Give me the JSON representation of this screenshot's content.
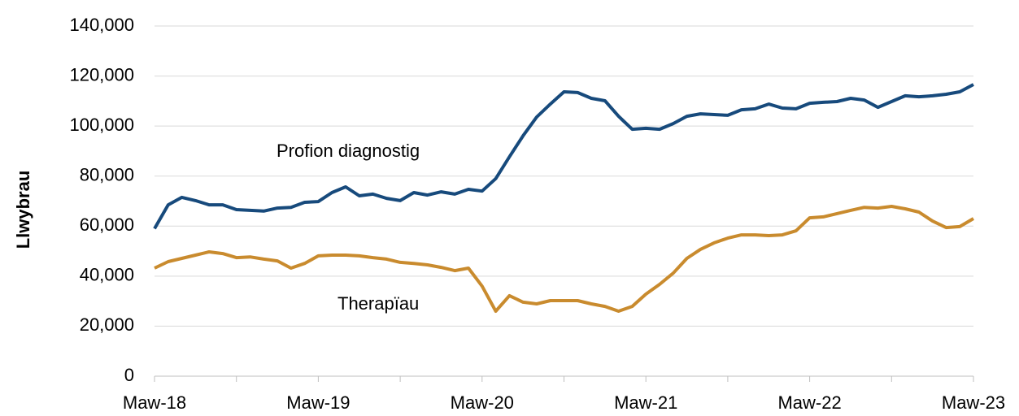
{
  "chart_data": {
    "type": "line",
    "y_label": "Llwybrau",
    "categories": [
      "Maw-18",
      null,
      null,
      null,
      null,
      null,
      null,
      null,
      null,
      null,
      null,
      null,
      "Maw-19",
      null,
      null,
      null,
      null,
      null,
      null,
      null,
      null,
      null,
      null,
      null,
      "Maw-20",
      null,
      null,
      null,
      null,
      null,
      null,
      null,
      null,
      null,
      null,
      null,
      "Maw-21",
      null,
      null,
      null,
      null,
      null,
      null,
      null,
      null,
      null,
      null,
      null,
      "Maw-22",
      null,
      null,
      null,
      null,
      null,
      null,
      null,
      null,
      null,
      null,
      null,
      "Maw-23"
    ],
    "series": [
      {
        "name": "Profion diagnostig",
        "color": "#174a7c",
        "values": [
          59000,
          68500,
          71500,
          70200,
          68500,
          68500,
          66600,
          66300,
          66000,
          67200,
          67500,
          69500,
          69800,
          73400,
          75700,
          72100,
          72800,
          71100,
          70200,
          73400,
          72400,
          73700,
          72800,
          74700,
          74000,
          79000,
          87700,
          96100,
          103600,
          108800,
          113700,
          113400,
          111100,
          110100,
          103900,
          98700,
          99100,
          98700,
          101000,
          103900,
          104900,
          104600,
          104300,
          106500,
          106900,
          108800,
          107200,
          106900,
          109100,
          109500,
          109800,
          111100,
          110400,
          107500,
          109800,
          112100,
          111700,
          112100,
          112700,
          113700,
          116600
        ]
      },
      {
        "name": "Therapïau",
        "color": "#c98b2e",
        "values": [
          43200,
          45800,
          47100,
          48400,
          49700,
          49000,
          47400,
          47700,
          46800,
          46100,
          43200,
          45100,
          48100,
          48400,
          48400,
          48100,
          47400,
          46800,
          45500,
          45100,
          44500,
          43500,
          42200,
          43200,
          36000,
          26000,
          32200,
          29600,
          28900,
          30200,
          30200,
          30200,
          28900,
          27900,
          26000,
          27900,
          32800,
          36700,
          41200,
          47100,
          50700,
          53300,
          55200,
          56500,
          56500,
          56200,
          56500,
          58100,
          63300,
          63700,
          65000,
          66300,
          67500,
          67200,
          67900,
          66900,
          65600,
          62000,
          59400,
          59800,
          63000
        ]
      }
    ],
    "ylim": [
      0,
      140000
    ],
    "yticks": [
      0,
      {
        "value": 20000,
        "label": "20,000"
      },
      {
        "value": 40000,
        "label": "40,000"
      },
      {
        "value": 60000,
        "label": "60,000"
      },
      {
        "value": 80000,
        "label": "80,000"
      },
      {
        "value": 100000,
        "label": "100,000"
      },
      {
        "value": 120000,
        "label": "120,000"
      },
      {
        "value": 140000,
        "label": "140,000"
      }
    ],
    "grid": true
  }
}
